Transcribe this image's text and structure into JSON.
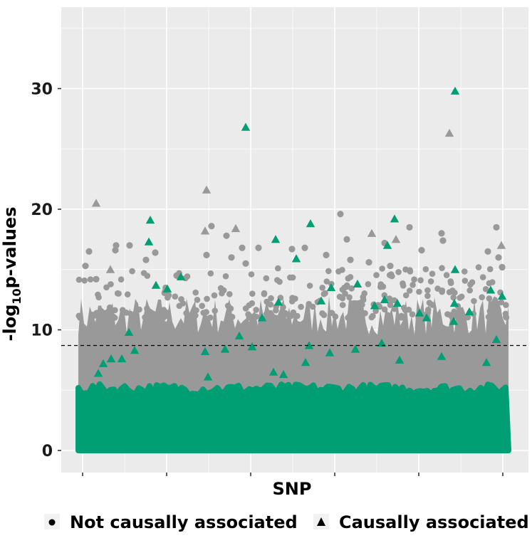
{
  "chart_data": {
    "type": "scatter",
    "subtype": "manhattan",
    "title": "",
    "xlabel": "SNP",
    "ylabel_main": "-log",
    "ylabel_sub": "10",
    "ylabel_tail": "p-values",
    "ylim": [
      -1.8,
      36
    ],
    "yticks": [
      0,
      10,
      20,
      30
    ],
    "ytick_labels": [
      "0",
      "10",
      "20",
      "30"
    ],
    "x_tick_count": 6,
    "grid": true,
    "threshold": 8.7,
    "legend_position": "bottom",
    "colors": {
      "panel": "#ebebeb",
      "grid": "#ffffff",
      "background_points": "#999999",
      "highlight": "#009e73",
      "threshold_line": "#000000"
    },
    "series": [
      {
        "name": "Not causally associated",
        "marker": "circle",
        "points": [
          {
            "x": 120,
            "y": 15.3
          },
          {
            "x": 125,
            "y": 16.5
          },
          {
            "x": 135,
            "y": 14.2
          },
          {
            "x": 162,
            "y": 16.6
          },
          {
            "x": 163,
            "y": 17.0
          },
          {
            "x": 182,
            "y": 17.0
          },
          {
            "x": 205,
            "y": 15.8
          },
          {
            "x": 218,
            "y": 16.4
          },
          {
            "x": 248,
            "y": 14.5
          },
          {
            "x": 290,
            "y": 16.2
          },
          {
            "x": 297,
            "y": 18.6
          },
          {
            "x": 318,
            "y": 17.8
          },
          {
            "x": 325,
            "y": 16.0
          },
          {
            "x": 340,
            "y": 16.8
          },
          {
            "x": 345,
            "y": 15.5
          },
          {
            "x": 363,
            "y": 16.8
          },
          {
            "x": 410,
            "y": 16.7
          },
          {
            "x": 428,
            "y": 16.8
          },
          {
            "x": 458,
            "y": 16.2
          },
          {
            "x": 478,
            "y": 19.6
          },
          {
            "x": 487,
            "y": 17.5
          },
          {
            "x": 492,
            "y": 15.8
          },
          {
            "x": 518,
            "y": 15.6
          },
          {
            "x": 540,
            "y": 17.2
          },
          {
            "x": 548,
            "y": 15.3
          },
          {
            "x": 575,
            "y": 18.5
          },
          {
            "x": 592,
            "y": 16.6
          },
          {
            "x": 620,
            "y": 18.0
          },
          {
            "x": 622,
            "y": 17.4
          },
          {
            "x": 685,
            "y": 16.5
          },
          {
            "x": 697,
            "y": 18.5
          },
          {
            "x": 700,
            "y": 16.0
          },
          {
            "x": 705,
            "y": 15.2
          },
          {
            "x": 168,
            "y": 6.2
          },
          {
            "x": 240,
            "y": 6.3
          },
          {
            "x": 275,
            "y": 7.2
          },
          {
            "x": 434,
            "y": 6.0
          },
          {
            "x": 515,
            "y": 6.3
          },
          {
            "x": 558,
            "y": 6.6
          },
          {
            "x": 598,
            "y": 7.0
          },
          {
            "x": 642,
            "y": 6.5
          },
          {
            "x": 690,
            "y": 5.9
          }
        ]
      },
      {
        "name": "Causally associated",
        "marker": "triangle",
        "points": [
          {
            "x": 135,
            "y": 20.5
          },
          {
            "x": 290,
            "y": 21.6
          },
          {
            "x": 288,
            "y": 18.2
          },
          {
            "x": 331,
            "y": 18.4
          },
          {
            "x": 155,
            "y": 15.0
          },
          {
            "x": 522,
            "y": 18.0
          },
          {
            "x": 556,
            "y": 17.5
          },
          {
            "x": 631,
            "y": 26.3
          },
          {
            "x": 704,
            "y": 17.0
          },
          {
            "x": 345,
            "y": 26.8,
            "h": 1
          },
          {
            "x": 639,
            "y": 29.8,
            "h": 1
          },
          {
            "x": 211,
            "y": 19.1,
            "h": 1
          },
          {
            "x": 209,
            "y": 17.3,
            "h": 1
          },
          {
            "x": 219,
            "y": 13.7,
            "h": 1
          },
          {
            "x": 235,
            "y": 13.4,
            "h": 1
          },
          {
            "x": 254,
            "y": 14.4,
            "h": 1
          },
          {
            "x": 387,
            "y": 17.5,
            "h": 1
          },
          {
            "x": 436,
            "y": 18.8,
            "h": 1
          },
          {
            "x": 416,
            "y": 15.9,
            "h": 1
          },
          {
            "x": 554,
            "y": 19.2,
            "h": 1
          },
          {
            "x": 544,
            "y": 17.0,
            "h": 1
          },
          {
            "x": 639,
            "y": 15.0,
            "h": 1
          },
          {
            "x": 391,
            "y": 12.3,
            "h": 1
          },
          {
            "x": 451,
            "y": 12.4,
            "h": 1
          },
          {
            "x": 465,
            "y": 13.5,
            "h": 1
          },
          {
            "x": 502,
            "y": 13.8,
            "h": 1
          },
          {
            "x": 540,
            "y": 12.5,
            "h": 1
          },
          {
            "x": 558,
            "y": 12.2,
            "h": 1
          },
          {
            "x": 526,
            "y": 12.0,
            "h": 1
          },
          {
            "x": 638,
            "y": 12.2,
            "h": 1
          },
          {
            "x": 705,
            "y": 12.8,
            "h": 1
          },
          {
            "x": 368,
            "y": 11.0,
            "h": 1
          },
          {
            "x": 589,
            "y": 11.4,
            "h": 1
          },
          {
            "x": 599,
            "y": 11.0,
            "h": 1
          },
          {
            "x": 637,
            "y": 10.7,
            "h": 1
          },
          {
            "x": 659,
            "y": 11.5,
            "h": 1
          },
          {
            "x": 181,
            "y": 9.8,
            "h": 1
          },
          {
            "x": 336,
            "y": 9.5,
            "h": 1
          },
          {
            "x": 697,
            "y": 9.2,
            "h": 1
          },
          {
            "x": 354,
            "y": 8.6,
            "h": 1
          },
          {
            "x": 434,
            "y": 8.7,
            "h": 1
          },
          {
            "x": 536,
            "y": 8.9,
            "h": 1
          },
          {
            "x": 189,
            "y": 8.3,
            "h": 1
          },
          {
            "x": 288,
            "y": 8.2,
            "h": 1
          },
          {
            "x": 316,
            "y": 8.4,
            "h": 1
          },
          {
            "x": 463,
            "y": 8.1,
            "h": 1
          },
          {
            "x": 499,
            "y": 8.4,
            "h": 1
          },
          {
            "x": 620,
            "y": 7.8,
            "h": 1
          },
          {
            "x": 156,
            "y": 7.6,
            "h": 1
          },
          {
            "x": 171,
            "y": 7.6,
            "h": 1
          },
          {
            "x": 145,
            "y": 7.2,
            "h": 1
          },
          {
            "x": 561,
            "y": 7.5,
            "h": 1
          },
          {
            "x": 683,
            "y": 7.3,
            "h": 1
          },
          {
            "x": 429,
            "y": 7.3,
            "h": 1
          },
          {
            "x": 138,
            "y": 6.4,
            "h": 1
          },
          {
            "x": 384,
            "y": 6.5,
            "h": 1
          },
          {
            "x": 398,
            "y": 6.3,
            "h": 1
          },
          {
            "x": 292,
            "y": 6.1,
            "h": 1
          },
          {
            "x": 689,
            "y": 13.3,
            "h": 1
          }
        ]
      }
    ]
  },
  "legend": {
    "items": [
      {
        "label": "Not causally associated",
        "marker": "circle"
      },
      {
        "label": "Causally associated",
        "marker": "triangle"
      }
    ]
  }
}
